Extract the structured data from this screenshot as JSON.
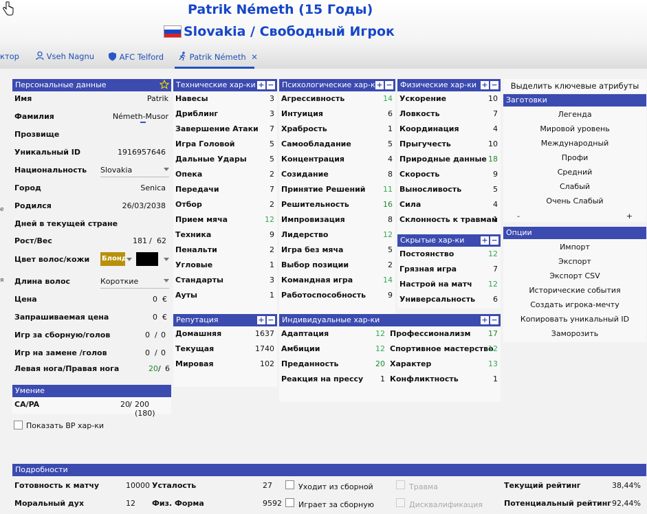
{
  "header": {
    "player_title": "Patrik Németh (15 Годы)",
    "subtitle": "Slovakia / Свободный Игрок"
  },
  "tabs": [
    {
      "label": "ктор"
    },
    {
      "label": "Vseh Nagnu"
    },
    {
      "label": "AFC Telford"
    },
    {
      "label": "Patrik Németh"
    }
  ],
  "personal": {
    "title": "Персональные данные",
    "name_label": "Имя",
    "name_value": "Patrik",
    "surname_label": "Фамилия",
    "surname_value": "Németh-Musor",
    "nickname_label": "Прозвище",
    "uid_label": "Уникальный ID",
    "uid_value": "1916957646",
    "nationality_label": "Национальность",
    "nationality_value": "Slovakia",
    "city_label": "Город",
    "city_value": "Senica",
    "born_label": "Родился",
    "born_value": "26/03/2038",
    "days_label": "Дней в текущей стране",
    "height_label": "Рост/Вес",
    "height_value": "181",
    "weight_value": "62",
    "hair_color_label": "Цвет волос/кожи",
    "hair_color_value": "Блонд",
    "hair_length_label": "Длина волос",
    "hair_length_value": "Короткие",
    "price_label": "Цена",
    "price_value": "0",
    "price_currency": "€",
    "asking_label": "Запрашиваемая цена",
    "asking_value": "0",
    "asking_currency": "€",
    "caps_label": "Игр за сборную/голов",
    "caps_value": "0",
    "caps_goals": "0",
    "sub_label": "Игр на замене /голов",
    "sub_value": "0",
    "sub_goals": "0",
    "feet_label": "Левая нога/Правая нога",
    "left_foot": "20",
    "right_foot": "6"
  },
  "ability": {
    "title": "Умение",
    "capa_label": "CA/PA",
    "ca": "20",
    "pa": "200 (180)",
    "show_bp_label": "Показать ВР хар-ки"
  },
  "technical": {
    "title": "Технические хар-ки",
    "rows": [
      {
        "label": "Навесы",
        "value": "3"
      },
      {
        "label": "Дриблинг",
        "value": "3"
      },
      {
        "label": "Завершение Атаки",
        "value": "7"
      },
      {
        "label": "Игра Головой",
        "value": "5"
      },
      {
        "label": "Дальные Удары",
        "value": "5"
      },
      {
        "label": "Опека",
        "value": "2"
      },
      {
        "label": "Передачи",
        "value": "7"
      },
      {
        "label": "Отбор",
        "value": "2"
      },
      {
        "label": "Прием мяча",
        "value": "12"
      },
      {
        "label": "Техника",
        "value": "9"
      },
      {
        "label": "Пенальти",
        "value": "2"
      },
      {
        "label": "Угловые",
        "value": "1"
      },
      {
        "label": "Стандарты",
        "value": "3"
      },
      {
        "label": "Ауты",
        "value": "1"
      }
    ]
  },
  "mental": {
    "title": "Психологические хар-ки",
    "rows": [
      {
        "label": "Агрессивность",
        "value": "14"
      },
      {
        "label": "Интуиция",
        "value": "6"
      },
      {
        "label": "Храбрость",
        "value": "1"
      },
      {
        "label": "Самообладание",
        "value": "5"
      },
      {
        "label": "Концентрация",
        "value": "4"
      },
      {
        "label": "Созидание",
        "value": "8"
      },
      {
        "label": "Принятие Решений",
        "value": "11"
      },
      {
        "label": "Решительность",
        "value": "16"
      },
      {
        "label": "Импровизация",
        "value": "8"
      },
      {
        "label": "Лидерство",
        "value": "12"
      },
      {
        "label": "Игра без мяча",
        "value": "5"
      },
      {
        "label": "Выбор позиции",
        "value": "2"
      },
      {
        "label": "Командная игра",
        "value": "14"
      },
      {
        "label": "Работоспособность",
        "value": "9"
      }
    ]
  },
  "physical": {
    "title": "Физические хар-ки",
    "rows": [
      {
        "label": "Ускорение",
        "value": "10"
      },
      {
        "label": "Ловкость",
        "value": "7"
      },
      {
        "label": "Координация",
        "value": "4"
      },
      {
        "label": "Прыгучесть",
        "value": "10"
      },
      {
        "label": "Природные данные",
        "value": "18"
      },
      {
        "label": "Скорость",
        "value": "9"
      },
      {
        "label": "Выносливость",
        "value": "5"
      },
      {
        "label": "Сила",
        "value": "4"
      },
      {
        "label": "Склонность к травмам",
        "value": "1"
      }
    ]
  },
  "hidden": {
    "title": "Скрытые хар-ки",
    "rows": [
      {
        "label": "Постоянство",
        "value": "12"
      },
      {
        "label": "Грязная игра",
        "value": "7"
      },
      {
        "label": "Настрой на матч",
        "value": "12"
      },
      {
        "label": "Универсальность",
        "value": "6"
      }
    ]
  },
  "reputation": {
    "title": "Репутация",
    "rows": [
      {
        "label": "Домашняя",
        "value": "1637"
      },
      {
        "label": "Текущая",
        "value": "1740"
      },
      {
        "label": "Мировая",
        "value": "102"
      }
    ]
  },
  "individual": {
    "title": "Индивидуальные хар-ки",
    "left": [
      {
        "label": "Адаптация",
        "value": "12"
      },
      {
        "label": "Амбиции",
        "value": "12"
      },
      {
        "label": "Преданность",
        "value": "20"
      },
      {
        "label": "Реакция на прессу",
        "value": "1"
      }
    ],
    "right": [
      {
        "label": "Профессионализм",
        "value": "17"
      },
      {
        "label": "Спортивное мастерство",
        "value": "12"
      },
      {
        "label": "Характер",
        "value": "13"
      },
      {
        "label": "Конфликтность",
        "value": "1"
      }
    ]
  },
  "sidebar": {
    "highlight_label": "Выделить ключевые атрибуты",
    "presets_title": "Заготовки",
    "presets": [
      "Легенда",
      "Мировой уровень",
      "Международный",
      "Профи",
      "Средний",
      "Слабый",
      "Очень Слабый"
    ],
    "minus": "-",
    "plus": "+",
    "options_title": "Опции",
    "options": [
      "Импорт",
      "Экспорт",
      "Экспорт CSV",
      "Исторические события",
      "Создать игрока-мечту",
      "Копировать уникальный ID",
      "Заморозить"
    ]
  },
  "details": {
    "title": "Подробности",
    "readiness_label": "Готовность к матчу",
    "readiness_value": "10000",
    "fatigue_label": "Усталость",
    "fatigue_value": "27",
    "morale_label": "Моральный дух",
    "morale_value": "12",
    "form_label": "Физ. Форма",
    "form_value": "9592",
    "retire_nat_label": "Уходит из сборной",
    "plays_nat_label": "Играет за сборную",
    "injury_label": "Травма",
    "disq_label": "Дисквалификация",
    "cur_rating_label": "Текущий рейтинг",
    "cur_rating_value": "38,44%",
    "pot_rating_label": "Потенциальный рейтинг",
    "pot_rating_value": "92,44%"
  },
  "colors": {
    "header_blue": "#3b4bb0",
    "title_blue": "#1646c8",
    "good_green": "#34a853",
    "hair_swatch": "#b8900a",
    "skin_swatch": "#000000"
  },
  "icons": [
    "cursor-hand-icon",
    "slovakia-flag-icon",
    "person-icon",
    "shield-icon",
    "runner-icon",
    "close-icon",
    "star-icon",
    "plus-icon",
    "minus-icon",
    "checkbox-icon"
  ]
}
